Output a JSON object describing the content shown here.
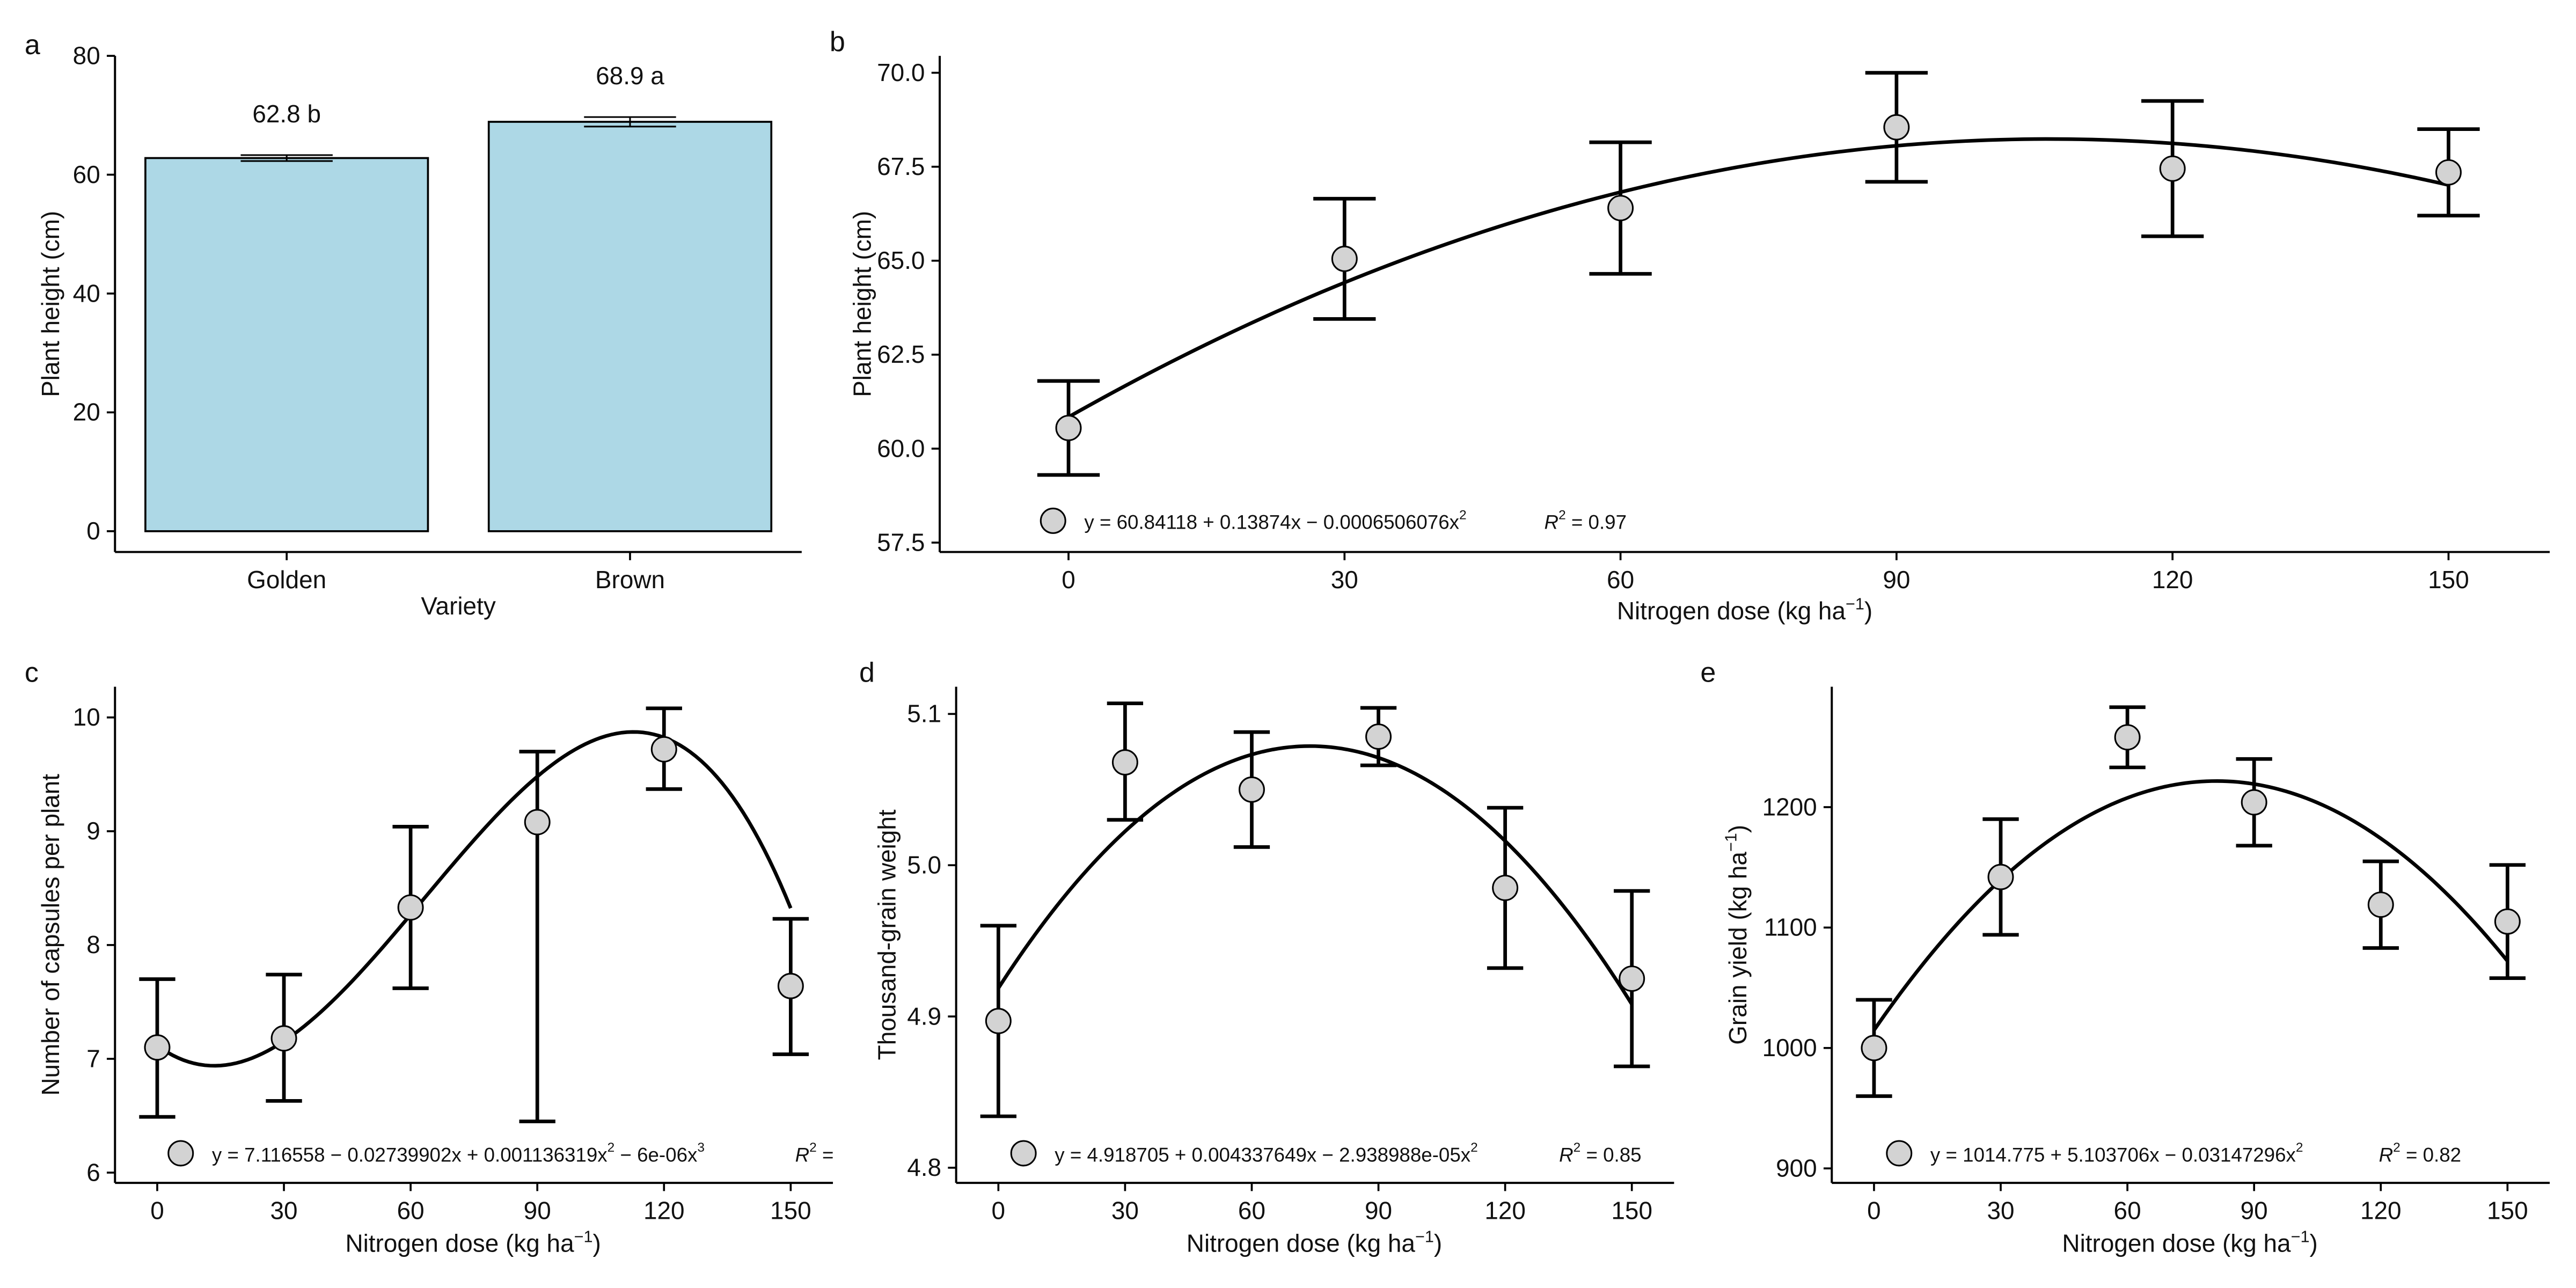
{
  "chart_data": [
    {
      "panel": "a",
      "type": "bar",
      "xlabel": "Variety",
      "ylabel": "Plant height (cm)",
      "categories": [
        "Golden",
        "Brown"
      ],
      "values": [
        62.8,
        68.9
      ],
      "error_low": [
        62.3,
        68.1
      ],
      "error_high": [
        63.3,
        69.7
      ],
      "labels": [
        "62.8 b",
        "68.9 a"
      ],
      "ylim": [
        -3.5,
        80
      ],
      "yticks": [
        0,
        20,
        40,
        60,
        80
      ],
      "bar_color": "#ADD8E6"
    },
    {
      "panel": "b",
      "type": "scatter",
      "xlabel": "Nitrogen dose (kg ha",
      "xlabel_sup": "−1",
      "ylabel": "Plant height (cm)",
      "x": [
        0,
        30,
        60,
        90,
        120,
        150
      ],
      "y": [
        60.55,
        65.05,
        66.4,
        68.55,
        67.45,
        67.35
      ],
      "error_low": [
        59.3,
        63.45,
        64.65,
        67.1,
        65.65,
        66.2
      ],
      "error_high": [
        61.8,
        66.65,
        68.15,
        70.0,
        69.25,
        68.5
      ],
      "fit": {
        "kind": "poly",
        "coef": [
          60.84118,
          0.13874,
          -0.0006506076
        ]
      },
      "equation": "y = 60.84118 + 0.13874x − 0.0006506076x",
      "eq_sup": "2",
      "r2_label": "R",
      "r2_sup": "2",
      "r2_value": " = 0.97",
      "xticks": [
        0,
        30,
        60,
        90,
        120,
        150
      ],
      "yticks": [
        57.5,
        60.0,
        62.5,
        65.0,
        67.5,
        70.0
      ],
      "ytick_labels": [
        "57.5",
        "60.0",
        "62.5",
        "65.0",
        "67.5",
        "70.0"
      ],
      "xlim": [
        -14,
        161
      ],
      "ylim": [
        57.25,
        70.45
      ],
      "point_color": "#D3D3D3"
    },
    {
      "panel": "c",
      "type": "scatter",
      "xlabel": "Nitrogen dose (kg ha",
      "xlabel_sup": "−1",
      "ylabel": "Number of capsules per plant",
      "x": [
        0,
        30,
        60,
        90,
        120,
        150
      ],
      "y": [
        7.1,
        7.18,
        8.33,
        9.08,
        9.72,
        7.64
      ],
      "error_low": [
        6.49,
        6.63,
        7.62,
        6.45,
        9.37,
        7.04
      ],
      "error_high": [
        7.7,
        7.74,
        9.04,
        9.7,
        10.08,
        8.23
      ],
      "fit": {
        "kind": "poly",
        "coef": [
          7.116558,
          -0.02739902,
          0.001136319,
          -6e-06
        ]
      },
      "equation": "y = 7.116558 − 0.02739902x + 0.001136319x",
      "eq_sup": "2",
      "equation_b": " − 6e-06x",
      "eq_sup_b": "3",
      "r2_label": "R",
      "r2_sup": "2",
      "r2_value": " =",
      "xticks": [
        0,
        30,
        60,
        90,
        120,
        150
      ],
      "yticks": [
        6,
        7,
        8,
        9,
        10
      ],
      "ytick_labels": [
        "6",
        "7",
        "8",
        "9",
        "10"
      ],
      "xlim": [
        -10,
        160
      ],
      "ylim": [
        5.91,
        10.27
      ],
      "point_color": "#D3D3D3"
    },
    {
      "panel": "d",
      "type": "scatter",
      "xlabel": "Nitrogen dose (kg ha",
      "xlabel_sup": "−1",
      "ylabel": "Thousand-grain weight",
      "x": [
        0,
        30,
        60,
        90,
        120,
        150
      ],
      "y": [
        4.897,
        5.068,
        5.05,
        5.085,
        4.985,
        4.925
      ],
      "error_low": [
        4.834,
        5.03,
        5.012,
        5.066,
        4.932,
        4.867
      ],
      "error_high": [
        4.96,
        5.107,
        5.088,
        5.104,
        5.038,
        4.983
      ],
      "fit": {
        "kind": "poly",
        "coef": [
          4.918705,
          0.004337649,
          -2.938988e-05
        ]
      },
      "equation": "y = 4.918705 + 0.004337649x − 2.938988e-05x",
      "eq_sup": "2",
      "r2_label": "R",
      "r2_sup": "2",
      "r2_value": " = 0.85",
      "xticks": [
        0,
        30,
        60,
        90,
        120,
        150
      ],
      "yticks": [
        4.8,
        4.9,
        5.0,
        5.1
      ],
      "ytick_labels": [
        "4.8",
        "4.9",
        "5.0",
        "5.1"
      ],
      "xlim": [
        -10,
        160
      ],
      "ylim": [
        4.79,
        5.118
      ],
      "point_color": "#D3D3D3"
    },
    {
      "panel": "e",
      "type": "scatter",
      "xlabel": "Nitrogen dose (kg ha",
      "xlabel_sup": "−1",
      "ylabel": "Grain yield (kg ha",
      "ylabel_sup": "−1",
      "x": [
        0,
        30,
        60,
        90,
        120,
        150
      ],
      "y": [
        1000,
        1142,
        1258,
        1204,
        1119,
        1105
      ],
      "error_low": [
        960,
        1094,
        1233,
        1168,
        1083,
        1058
      ],
      "error_high": [
        1040,
        1190,
        1283,
        1240,
        1155,
        1152
      ],
      "fit": {
        "kind": "poly",
        "coef": [
          1014.775,
          5.103706,
          -0.03147296
        ]
      },
      "equation": "y = 1014.775 + 5.103706x − 0.03147296x",
      "eq_sup": "2",
      "r2_label": "R",
      "r2_sup": "2",
      "r2_value": " = 0.82",
      "xticks": [
        0,
        30,
        60,
        90,
        120,
        150
      ],
      "yticks": [
        900,
        1000,
        1100,
        1200
      ],
      "ytick_labels": [
        "900",
        "1000",
        "1100",
        "1200"
      ],
      "xlim": [
        -10,
        160
      ],
      "ylim": [
        888,
        1300
      ],
      "point_color": "#D3D3D3"
    }
  ]
}
